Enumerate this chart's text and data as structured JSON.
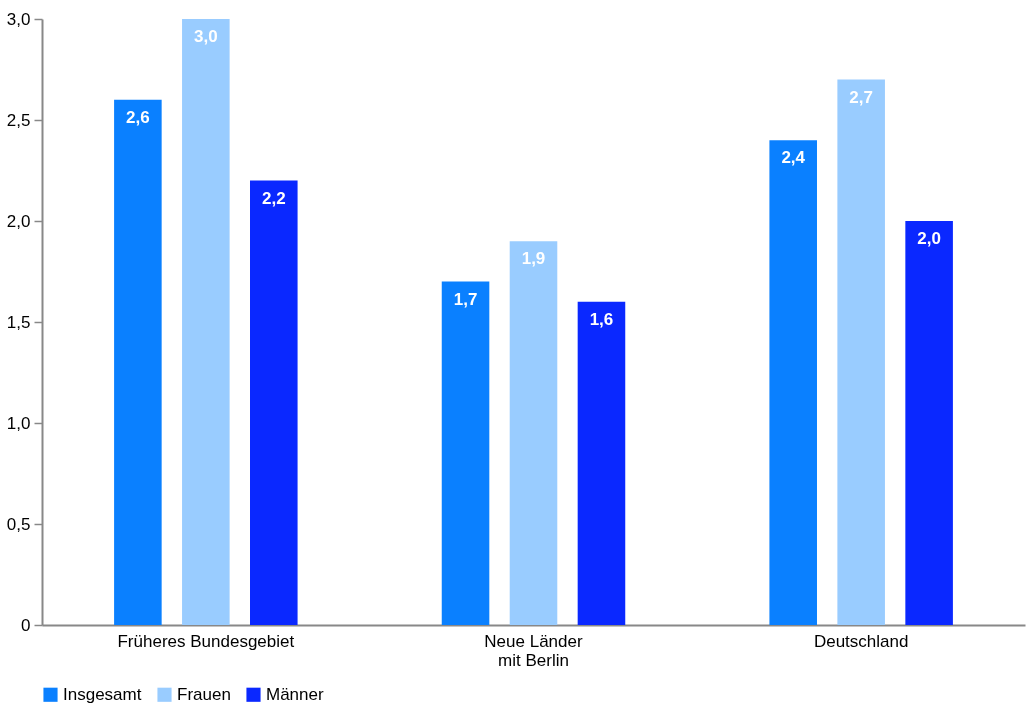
{
  "chart_data": {
    "type": "bar",
    "categories": [
      "Früheres Bundesgebiet",
      "Neue Länder\nmit Berlin",
      "Deutschland"
    ],
    "series": [
      {
        "name": "Insgesamt",
        "color": "#0a80ff",
        "values": [
          2.6,
          1.7,
          2.4
        ],
        "value_labels": [
          "2,6",
          "1,7",
          "2,4"
        ]
      },
      {
        "name": "Frauen",
        "color": "#99ccff",
        "values": [
          3.0,
          1.9,
          2.7
        ],
        "value_labels": [
          "3,0",
          "1,9",
          "2,7"
        ]
      },
      {
        "name": "Männer",
        "color": "#0a28ff",
        "values": [
          2.2,
          1.6,
          2.0
        ],
        "value_labels": [
          "2,2",
          "1,6",
          "2,0"
        ]
      }
    ],
    "ylim": [
      0,
      3.0
    ],
    "yticks": [
      0,
      {
        "value": 0.5,
        "label": "0,5"
      },
      {
        "value": 1.0,
        "label": "1,0"
      },
      {
        "value": 1.5,
        "label": "1,5"
      },
      {
        "value": 2.0,
        "label": "2,0"
      },
      {
        "value": 2.5,
        "label": "2,5"
      },
      {
        "value": 3.0,
        "label": "3,0"
      }
    ],
    "legend": "bottom",
    "grid": false
  }
}
